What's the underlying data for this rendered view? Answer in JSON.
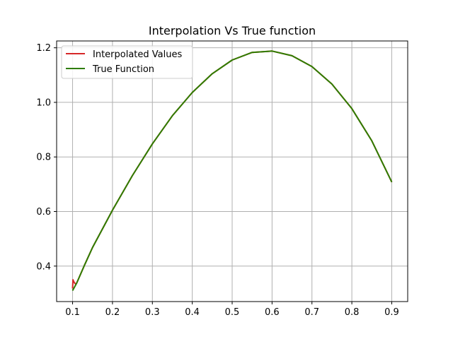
{
  "chart_data": {
    "type": "line",
    "title": "Interpolation Vs True function",
    "xlabel": "",
    "ylabel": "",
    "xlim": [
      0.06,
      0.94
    ],
    "ylim": [
      0.27,
      1.225
    ],
    "xticks": [
      0.1,
      0.2,
      0.3,
      0.4,
      0.5,
      0.6,
      0.7,
      0.8,
      0.9
    ],
    "xtick_labels": [
      "0.1",
      "0.2",
      "0.3",
      "0.4",
      "0.5",
      "0.6",
      "0.7",
      "0.8",
      "0.9"
    ],
    "yticks": [
      0.4,
      0.6,
      0.8,
      1.0,
      1.2
    ],
    "ytick_labels": [
      "0.4",
      "0.6",
      "0.8",
      "1.0",
      "1.2"
    ],
    "grid": true,
    "legend": "top-left",
    "series": [
      {
        "name": "Interpolated Values",
        "color": "#d62728",
        "x": [
          0.1,
          0.101,
          0.103,
          0.105,
          0.107,
          0.11,
          0.13,
          0.15,
          0.2,
          0.25,
          0.3,
          0.35,
          0.4,
          0.45,
          0.5,
          0.55,
          0.6,
          0.65,
          0.7,
          0.75,
          0.8,
          0.85,
          0.9
        ],
        "y": [
          0.318,
          0.35,
          0.343,
          0.338,
          0.335,
          0.337,
          0.404,
          0.468,
          0.605,
          0.732,
          0.848,
          0.951,
          1.036,
          1.105,
          1.155,
          1.183,
          1.188,
          1.171,
          1.131,
          1.067,
          0.977,
          0.859,
          0.708
        ]
      },
      {
        "name": "True Function",
        "color": "#2e7d00",
        "x": [
          0.1,
          0.11,
          0.13,
          0.15,
          0.2,
          0.25,
          0.3,
          0.35,
          0.4,
          0.45,
          0.5,
          0.55,
          0.6,
          0.65,
          0.7,
          0.75,
          0.8,
          0.85,
          0.9
        ],
        "y": [
          0.31,
          0.337,
          0.404,
          0.468,
          0.605,
          0.732,
          0.848,
          0.951,
          1.036,
          1.105,
          1.155,
          1.183,
          1.188,
          1.171,
          1.131,
          1.067,
          0.977,
          0.859,
          0.708
        ]
      }
    ]
  }
}
